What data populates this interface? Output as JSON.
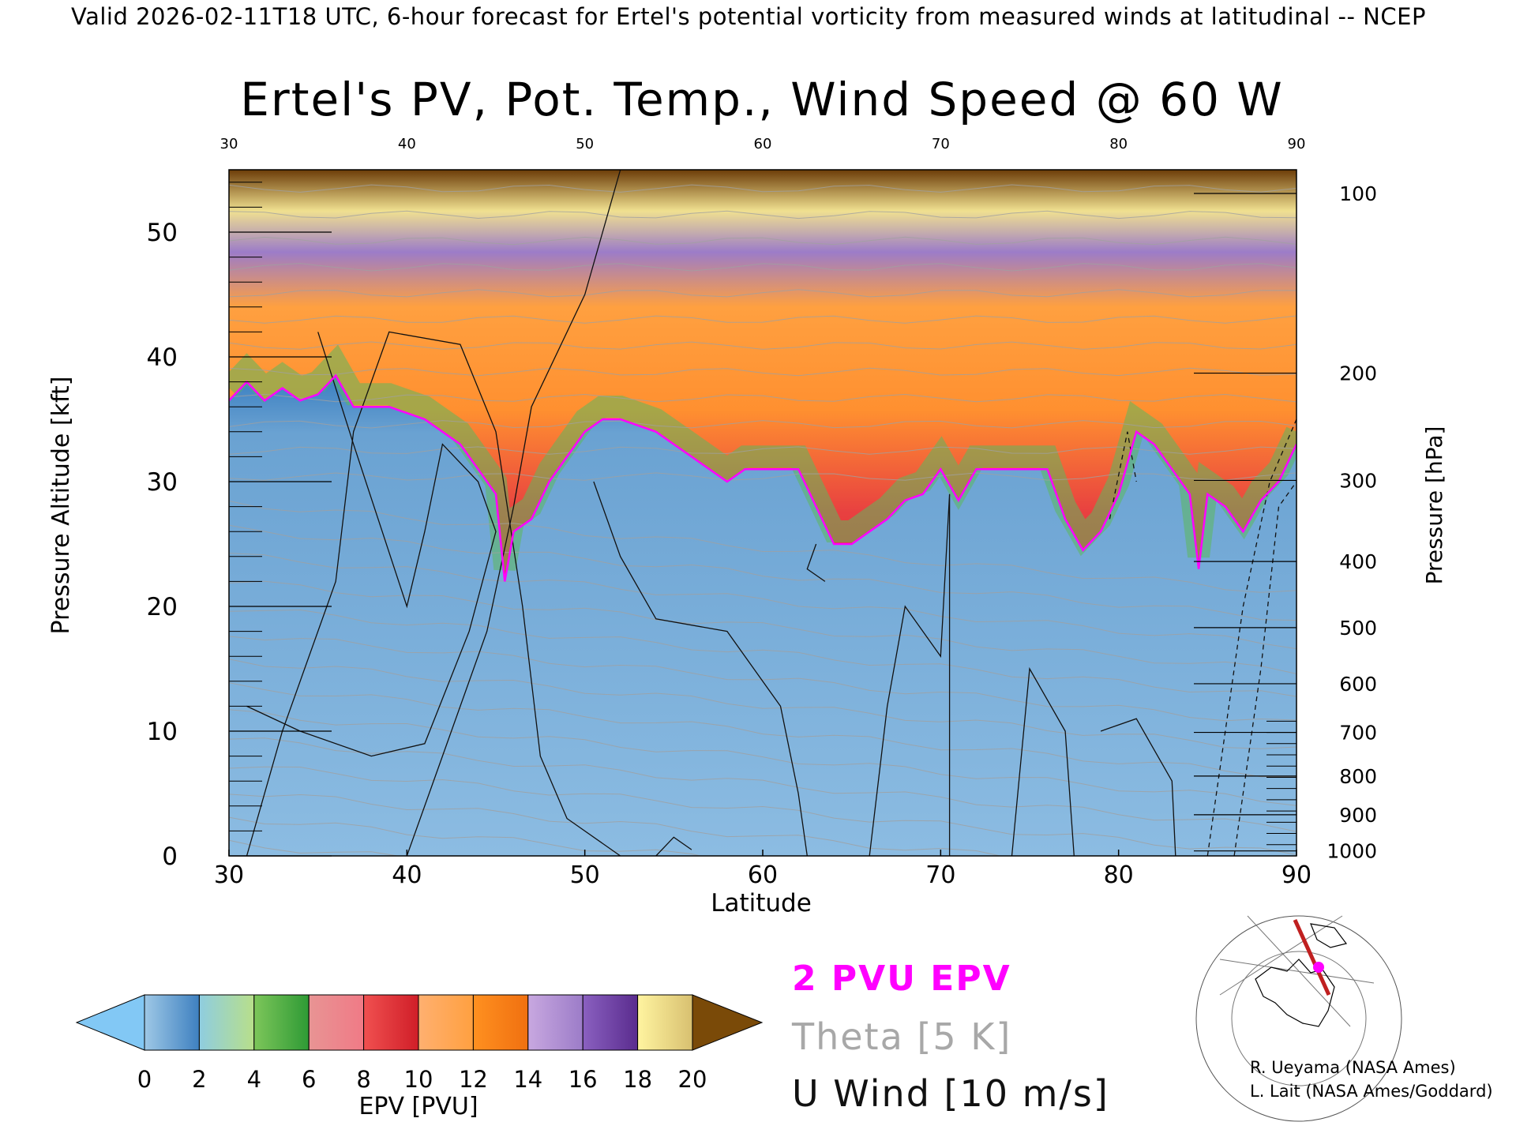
{
  "header": {
    "valid_line": "Valid 2026-02-11T18 UTC, 6-hour forecast for Ertel's potential vorticity from measured winds at latitudinal -- NCEP"
  },
  "chart_data": {
    "type": "heatmap",
    "title": "Ertel's PV, Pot. Temp., Wind Speed @ 60 W",
    "xlabel": "Latitude",
    "ylabel_left": "Pressure Altitude [kft]",
    "ylabel_right": "Pressure [hPa]",
    "xlim": [
      30,
      90
    ],
    "ylim": [
      0,
      55
    ],
    "x_ticks": [
      "30",
      "40",
      "50",
      "60",
      "70",
      "80",
      "90"
    ],
    "top_ticks": [
      "30",
      "40",
      "50",
      "60",
      "70",
      "80",
      "90"
    ],
    "y_ticks": [
      "0",
      "10",
      "20",
      "30",
      "40",
      "50"
    ],
    "pressure_ticks": [
      {
        "label": "100",
        "kft": 53.1
      },
      {
        "label": "200",
        "kft": 38.7
      },
      {
        "label": "300",
        "kft": 30.1
      },
      {
        "label": "400",
        "kft": 23.6
      },
      {
        "label": "500",
        "kft": 18.3
      },
      {
        "label": "600",
        "kft": 13.8
      },
      {
        "label": "700",
        "kft": 9.9
      },
      {
        "label": "800",
        "kft": 6.4
      },
      {
        "label": "900",
        "kft": 3.3
      },
      {
        "label": "1000",
        "kft": 0.4
      }
    ],
    "tropopause_2pvu_kft": [
      [
        30,
        36.5
      ],
      [
        31,
        38
      ],
      [
        32,
        36.5
      ],
      [
        33,
        37.5
      ],
      [
        34,
        36.5
      ],
      [
        35,
        37
      ],
      [
        36,
        38.5
      ],
      [
        37,
        36
      ],
      [
        38,
        36
      ],
      [
        39,
        36
      ],
      [
        40,
        35.5
      ],
      [
        41,
        35
      ],
      [
        42,
        34
      ],
      [
        43,
        33
      ],
      [
        44,
        31
      ],
      [
        45,
        29
      ],
      [
        45.5,
        22
      ],
      [
        46,
        26
      ],
      [
        47,
        27
      ],
      [
        48,
        30
      ],
      [
        49,
        32
      ],
      [
        50,
        34
      ],
      [
        51,
        35
      ],
      [
        52,
        35
      ],
      [
        53,
        34.5
      ],
      [
        54,
        34
      ],
      [
        55,
        33
      ],
      [
        56,
        32
      ],
      [
        57,
        31
      ],
      [
        58,
        30
      ],
      [
        59,
        31
      ],
      [
        60,
        31
      ],
      [
        61,
        31
      ],
      [
        62,
        31
      ],
      [
        63,
        28
      ],
      [
        64,
        25
      ],
      [
        65,
        25
      ],
      [
        66,
        26
      ],
      [
        67,
        27
      ],
      [
        68,
        28.5
      ],
      [
        69,
        29
      ],
      [
        70,
        31
      ],
      [
        71,
        28.5
      ],
      [
        72,
        31
      ],
      [
        73,
        31
      ],
      [
        74,
        31
      ],
      [
        75,
        31
      ],
      [
        76,
        31
      ],
      [
        77,
        27
      ],
      [
        78,
        24.5
      ],
      [
        79,
        26
      ],
      [
        80,
        29
      ],
      [
        81,
        34
      ],
      [
        82,
        33
      ],
      [
        83,
        31
      ],
      [
        84,
        29
      ],
      [
        84.5,
        23
      ],
      [
        85,
        29
      ],
      [
        86,
        28
      ],
      [
        87,
        26
      ],
      [
        88,
        28.5
      ],
      [
        89,
        30
      ],
      [
        90,
        33
      ]
    ],
    "colorbar": {
      "label": "EPV [PVU]",
      "ticks": [
        "0",
        "2",
        "4",
        "6",
        "8",
        "10",
        "12",
        "14",
        "16",
        "18",
        "20"
      ],
      "under_color": "#82c8f5",
      "over_color": "#7a4a08",
      "segments": [
        {
          "from": 0,
          "to": 2,
          "colors": [
            "#9ec8e6",
            "#3e80c0"
          ]
        },
        {
          "from": 2,
          "to": 4,
          "colors": [
            "#8fcde0",
            "#b8df8a"
          ]
        },
        {
          "from": 4,
          "to": 6,
          "colors": [
            "#7dc65a",
            "#2e9a35"
          ]
        },
        {
          "from": 6,
          "to": 8,
          "colors": [
            "#e89494",
            "#f07a86"
          ]
        },
        {
          "from": 8,
          "to": 10,
          "colors": [
            "#f05050",
            "#d01e28"
          ]
        },
        {
          "from": 10,
          "to": 12,
          "colors": [
            "#ffb070",
            "#ffa040"
          ]
        },
        {
          "from": 12,
          "to": 14,
          "colors": [
            "#ff9020",
            "#f07010"
          ]
        },
        {
          "from": 14,
          "to": 16,
          "colors": [
            "#c8a8e0",
            "#9c7cc8"
          ]
        },
        {
          "from": 16,
          "to": 18,
          "colors": [
            "#8a60c0",
            "#5a2c8e"
          ]
        },
        {
          "from": 18,
          "to": 20,
          "colors": [
            "#fff4a0",
            "#d8c070"
          ]
        }
      ]
    }
  },
  "legend": {
    "pv_label": "2 PVU EPV",
    "theta_label": "Theta [5 K]",
    "wind_label": "U Wind [10 m/s]",
    "pv_color": "#ff00ff",
    "theta_color": "#a8a8a8"
  },
  "credits": {
    "line1": "R. Ueyama (NASA Ames)",
    "line2": "L. Lait (NASA Ames/Goddard)"
  }
}
